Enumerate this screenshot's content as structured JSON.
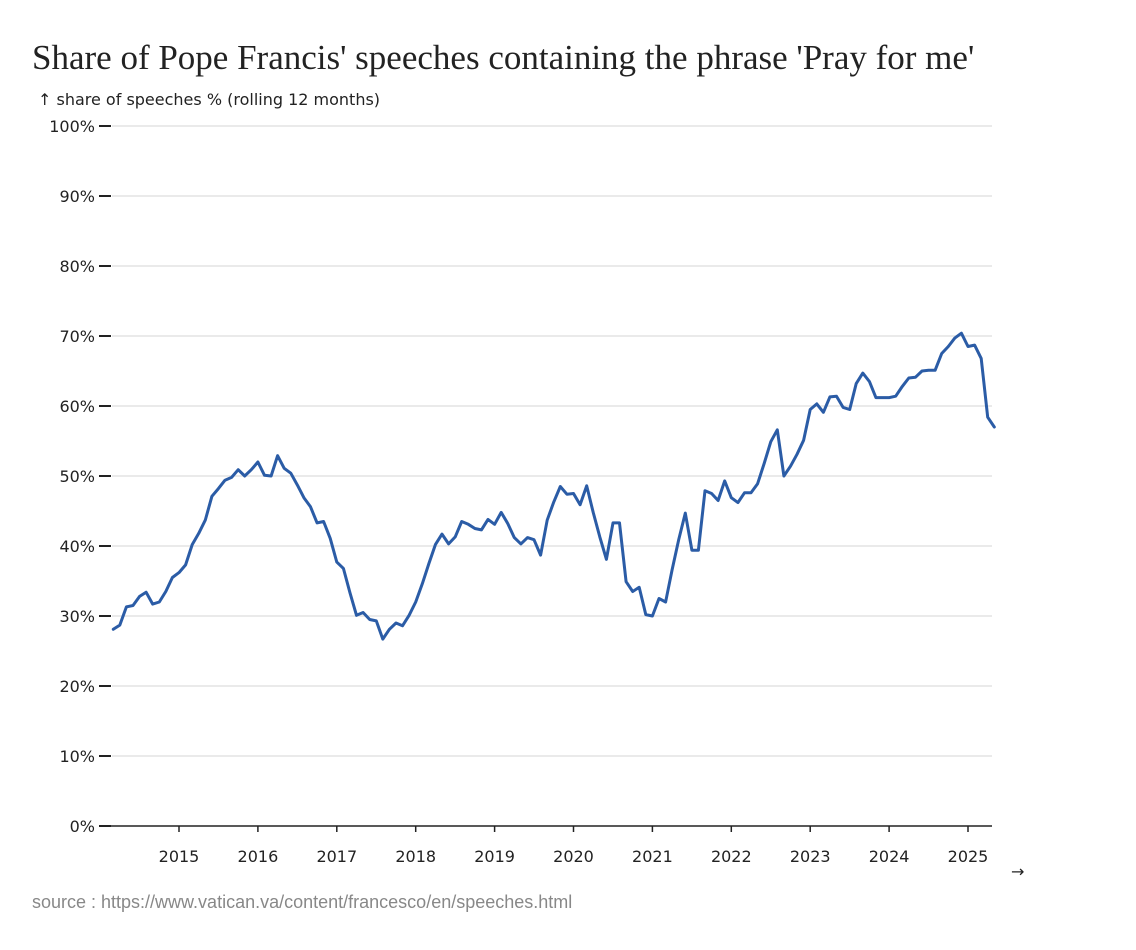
{
  "chart_data": {
    "type": "line",
    "title": "Share of Pope Francis' speeches containing the phrase 'Pray for me'",
    "ylabel": "↑ share of speeches % (rolling 12 months)",
    "xlabel": "→",
    "source": "source : https://www.vatican.va/content/francesco/en/speeches.html",
    "ylim": [
      0,
      100
    ],
    "y_ticks": [
      "0%",
      "10%",
      "20%",
      "30%",
      "40%",
      "50%",
      "60%",
      "70%",
      "80%",
      "90%",
      "100%"
    ],
    "x_ticks": [
      "2015",
      "2016",
      "2017",
      "2018",
      "2019",
      "2020",
      "2021",
      "2022",
      "2023",
      "2024",
      "2025"
    ],
    "grid": "horizontal",
    "line_color": "#2b5ca6",
    "x": [
      "2014-03",
      "2014-04",
      "2014-05",
      "2014-06",
      "2014-07",
      "2014-08",
      "2014-09",
      "2014-10",
      "2014-11",
      "2014-12",
      "2015-01",
      "2015-02",
      "2015-03",
      "2015-04",
      "2015-05",
      "2015-06",
      "2015-07",
      "2015-08",
      "2015-09",
      "2015-10",
      "2015-11",
      "2015-12",
      "2016-01",
      "2016-02",
      "2016-03",
      "2016-04",
      "2016-05",
      "2016-06",
      "2016-07",
      "2016-08",
      "2016-09",
      "2016-10",
      "2016-11",
      "2016-12",
      "2017-01",
      "2017-02",
      "2017-03",
      "2017-04",
      "2017-05",
      "2017-06",
      "2017-07",
      "2017-08",
      "2017-09",
      "2017-10",
      "2017-11",
      "2017-12",
      "2018-01",
      "2018-02",
      "2018-03",
      "2018-04",
      "2018-05",
      "2018-06",
      "2018-07",
      "2018-08",
      "2018-09",
      "2018-10",
      "2018-11",
      "2018-12",
      "2019-01",
      "2019-02",
      "2019-03",
      "2019-04",
      "2019-05",
      "2019-06",
      "2019-07",
      "2019-08",
      "2019-09",
      "2019-10",
      "2019-11",
      "2019-12",
      "2020-01",
      "2020-02",
      "2020-03",
      "2020-04",
      "2020-05",
      "2020-06",
      "2020-07",
      "2020-08",
      "2020-09",
      "2020-10",
      "2020-11",
      "2020-12",
      "2021-01",
      "2021-02",
      "2021-03",
      "2021-04",
      "2021-05",
      "2021-06",
      "2021-07",
      "2021-08",
      "2021-09",
      "2021-10",
      "2021-11",
      "2021-12",
      "2022-01",
      "2022-02",
      "2022-03",
      "2022-04",
      "2022-05",
      "2022-06",
      "2022-07",
      "2022-08",
      "2022-09",
      "2022-10",
      "2022-11",
      "2022-12",
      "2023-01",
      "2023-02",
      "2023-03",
      "2023-04",
      "2023-05",
      "2023-06",
      "2023-07",
      "2023-08",
      "2023-09",
      "2023-10",
      "2023-11",
      "2023-12",
      "2024-01",
      "2024-02",
      "2024-03",
      "2024-04",
      "2024-05",
      "2024-06",
      "2024-07",
      "2024-08",
      "2024-09",
      "2024-10",
      "2024-11",
      "2024-12",
      "2025-01",
      "2025-02",
      "2025-03",
      "2025-04",
      "2025-05"
    ],
    "values": [
      28.1,
      28.7,
      31.3,
      31.5,
      32.8,
      33.4,
      31.7,
      32.0,
      33.5,
      35.5,
      36.2,
      37.3,
      40.2,
      41.8,
      43.7,
      47.1,
      48.2,
      49.4,
      49.8,
      50.9,
      50.0,
      50.9,
      52.0,
      50.1,
      50.0,
      52.9,
      51.1,
      50.4,
      48.7,
      46.9,
      45.6,
      43.3,
      43.5,
      41.1,
      37.7,
      36.8,
      33.3,
      30.1,
      30.5,
      29.5,
      29.3,
      26.7,
      28.1,
      29.0,
      28.6,
      30.1,
      32.0,
      34.6,
      37.5,
      40.2,
      41.7,
      40.3,
      41.3,
      43.5,
      43.1,
      42.5,
      42.3,
      43.8,
      43.1,
      44.8,
      43.2,
      41.2,
      40.3,
      41.2,
      40.9,
      38.7,
      43.7,
      46.3,
      48.5,
      47.4,
      47.5,
      45.9,
      48.6,
      44.8,
      41.3,
      38.1,
      43.3,
      43.3,
      34.9,
      33.5,
      34.1,
      30.2,
      30.0,
      32.5,
      32.0,
      36.6,
      40.9,
      44.7,
      39.4,
      39.4,
      47.9,
      47.5,
      46.5,
      49.3,
      46.9,
      46.2,
      47.6,
      47.6,
      48.9,
      51.8,
      54.9,
      56.6,
      50.0,
      51.4,
      53.1,
      55.1,
      59.5,
      60.3,
      59.1,
      61.3,
      61.4,
      59.8,
      59.5,
      63.2,
      64.7,
      63.5,
      61.2,
      61.2,
      61.2,
      61.4,
      62.8,
      64.0,
      64.1,
      65.0,
      65.1,
      65.1,
      67.5,
      68.5,
      69.7,
      70.4,
      68.5,
      68.7,
      66.8,
      58.4,
      57.0
    ]
  }
}
